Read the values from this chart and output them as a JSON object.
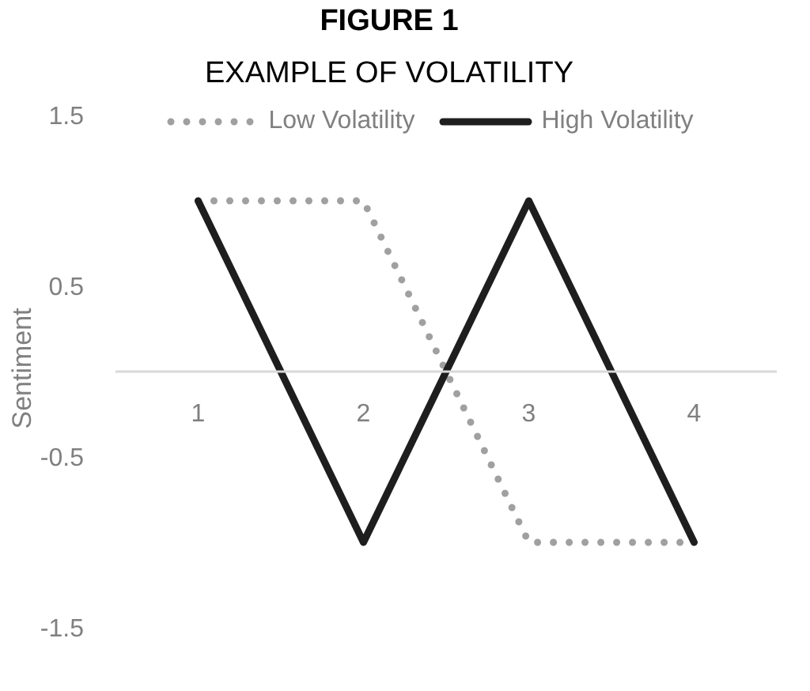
{
  "chart_data": {
    "type": "line",
    "title": "FIGURE 1",
    "subtitle": "EXAMPLE OF VOLATILITY",
    "ylabel": "Sentiment",
    "categories": [
      "1",
      "2",
      "3",
      "4"
    ],
    "series": [
      {
        "name": "Low Volatility",
        "color": "#a0a0a0",
        "values": [
          1,
          1,
          -1,
          -1
        ],
        "line_style": "dotted"
      },
      {
        "name": "High Volatility",
        "color": "#1e1e1e",
        "values": [
          1,
          -1,
          1,
          -1
        ],
        "line_style": "solid"
      }
    ],
    "ylim": [
      -1.5,
      1.5
    ],
    "yticks": [
      -1.5,
      -0.5,
      0.5,
      1.5
    ],
    "legend": "top"
  }
}
